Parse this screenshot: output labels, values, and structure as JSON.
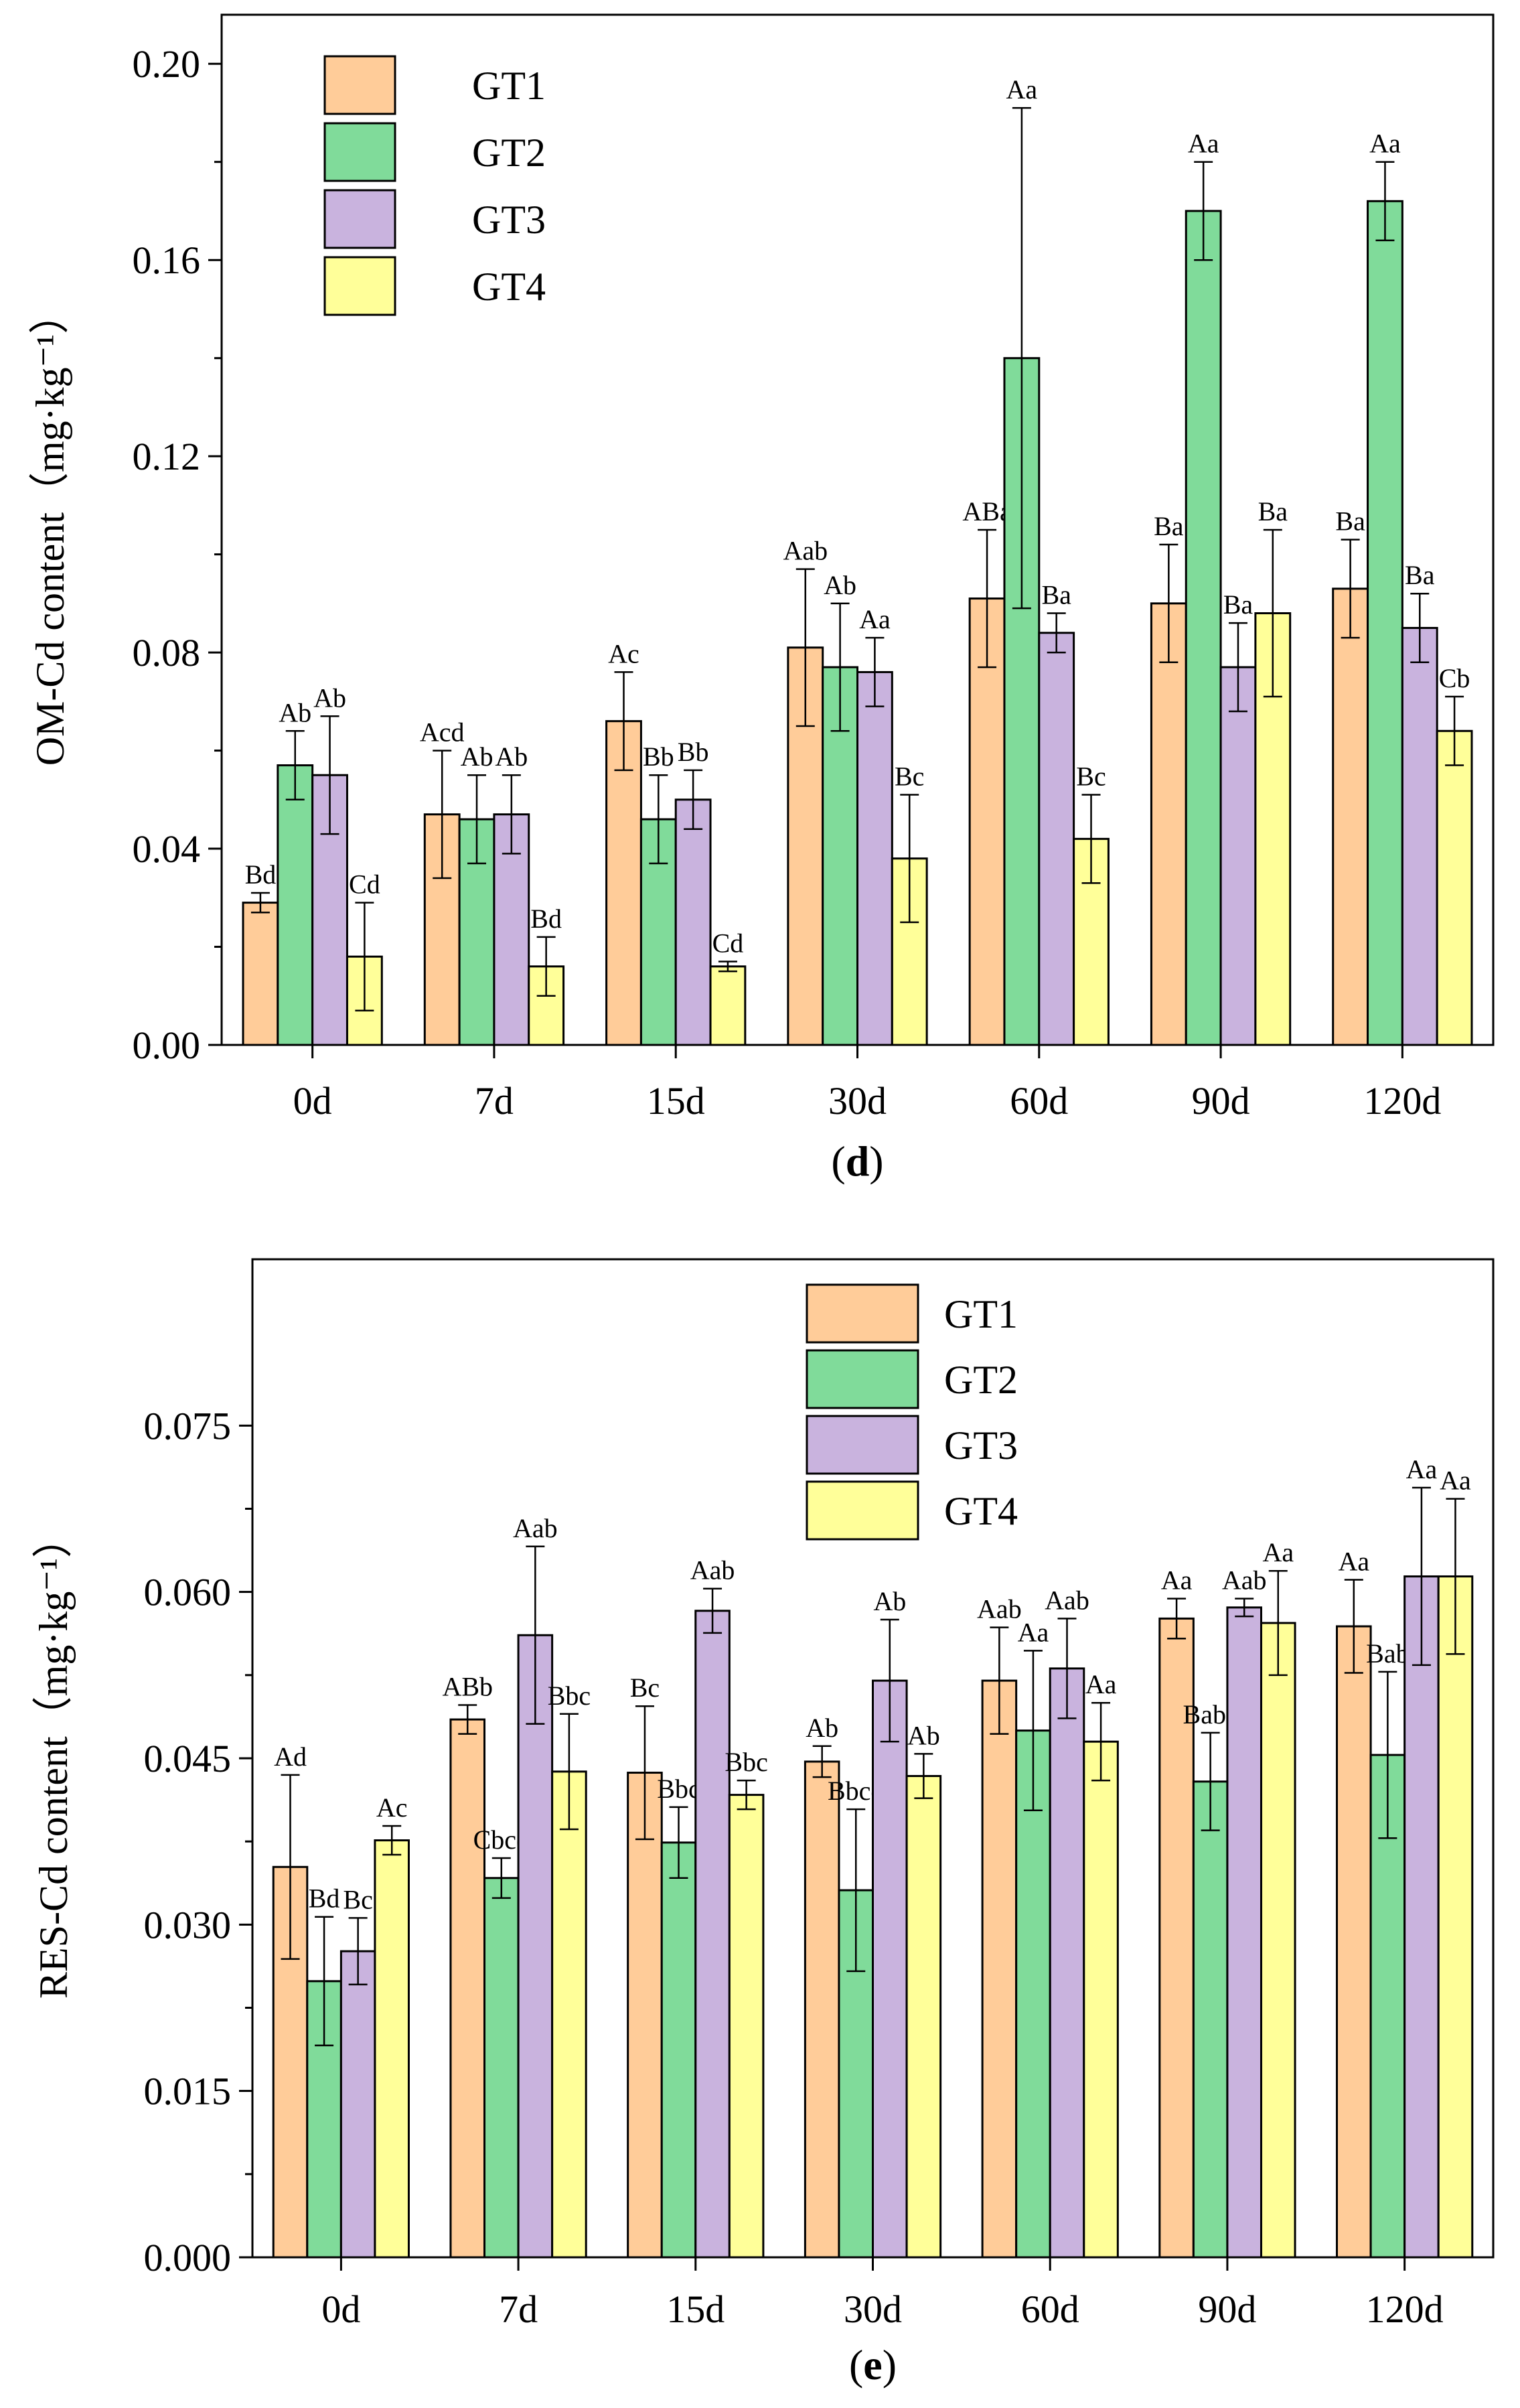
{
  "series_colors": [
    "#FFCC99",
    "#80DB9A",
    "#C9B3DE",
    "#FFFF99"
  ],
  "chart_data": [
    {
      "type": "bar",
      "panel": "(d)",
      "panel_letter": "d",
      "ylabel": "OM-Cd content（mg·kg⁻¹）",
      "ylim": [
        0,
        0.21
      ],
      "yticks": [
        0,
        0.04,
        0.08,
        0.12,
        0.16,
        0.2
      ],
      "ytick_labels": [
        "0.00",
        "0.04",
        "0.08",
        "0.12",
        "0.16",
        "0.20"
      ],
      "categories": [
        "0d",
        "7d",
        "15d",
        "30d",
        "60d",
        "90d",
        "120d"
      ],
      "legend_position": "top-left",
      "series": [
        {
          "name": "GT1",
          "values": [
            0.029,
            0.047,
            0.066,
            0.081,
            0.091,
            0.09,
            0.093
          ],
          "errors": [
            0.002,
            0.013,
            0.01,
            0.016,
            0.014,
            0.012,
            0.01
          ],
          "labels": [
            "Bd",
            "Acd",
            "Ac",
            "Aab",
            "ABa",
            "Ba",
            "Ba"
          ]
        },
        {
          "name": "GT2",
          "values": [
            0.057,
            0.046,
            0.046,
            0.077,
            0.14,
            0.17,
            0.172
          ],
          "errors": [
            0.007,
            0.009,
            0.009,
            0.013,
            0.051,
            0.01,
            0.008
          ],
          "labels": [
            "Ab",
            "Ab",
            "Bb",
            "Ab",
            "Aa",
            "Aa",
            "Aa"
          ]
        },
        {
          "name": "GT3",
          "values": [
            0.055,
            0.047,
            0.05,
            0.076,
            0.084,
            0.077,
            0.085
          ],
          "errors": [
            0.012,
            0.008,
            0.006,
            0.007,
            0.004,
            0.009,
            0.007
          ],
          "labels": [
            "Ab",
            "Ab",
            "Bb",
            "Aa",
            "Ba",
            "Ba",
            "Ba"
          ]
        },
        {
          "name": "GT4",
          "values": [
            0.018,
            0.016,
            0.016,
            0.038,
            0.042,
            0.088,
            0.064
          ],
          "errors": [
            0.011,
            0.006,
            0.001,
            0.013,
            0.009,
            0.017,
            0.007
          ],
          "labels": [
            "Cd",
            "Bd",
            "Cd",
            "Bc",
            "Bc",
            "Ba",
            "Cb"
          ]
        }
      ]
    },
    {
      "type": "bar",
      "panel": "(e)",
      "panel_letter": "e",
      "ylabel": "RES-Cd content（mg·kg⁻¹）",
      "ylim": [
        0,
        0.09
      ],
      "yticks": [
        0,
        0.015,
        0.03,
        0.045,
        0.06,
        0.075
      ],
      "ytick_labels": [
        "0.000",
        "0.015",
        "0.030",
        "0.045",
        "0.060",
        "0.075"
      ],
      "categories": [
        "0d",
        "7d",
        "15d",
        "30d",
        "60d",
        "90d",
        "120d"
      ],
      "legend_position": "top-center",
      "series": [
        {
          "name": "GT1",
          "values": [
            0.0352,
            0.0485,
            0.0437,
            0.0447,
            0.052,
            0.0576,
            0.0569
          ],
          "errors": [
            0.0083,
            0.0013,
            0.006,
            0.0014,
            0.0048,
            0.0018,
            0.0042
          ],
          "labels": [
            "Ad",
            "ABb",
            "Bc",
            "Ab",
            "Aab",
            "Aa",
            "Aa"
          ]
        },
        {
          "name": "GT2",
          "values": [
            0.0249,
            0.0342,
            0.0374,
            0.0331,
            0.0475,
            0.0429,
            0.0453
          ],
          "errors": [
            0.0058,
            0.0018,
            0.0032,
            0.0073,
            0.0072,
            0.0044,
            0.0075
          ],
          "labels": [
            "Bd",
            "Cbcd",
            "Bbc",
            "Bbcd",
            "Aa",
            "Babc",
            "Bab"
          ]
        },
        {
          "name": "GT3",
          "values": [
            0.0276,
            0.0561,
            0.0583,
            0.052,
            0.0531,
            0.0586,
            0.0614
          ],
          "errors": [
            0.003,
            0.008,
            0.002,
            0.0055,
            0.0045,
            0.0008,
            0.008
          ],
          "labels": [
            "Bc",
            "Aab",
            "Aab",
            "Ab",
            "Aab",
            "Aab",
            "Aa"
          ]
        },
        {
          "name": "GT4",
          "values": [
            0.0376,
            0.0438,
            0.0417,
            0.0434,
            0.0465,
            0.0572,
            0.0614
          ],
          "errors": [
            0.0013,
            0.0052,
            0.0013,
            0.002,
            0.0035,
            0.0047,
            0.007
          ],
          "labels": [
            "Ac",
            "Bbc",
            "Bbc",
            "Ab",
            "Aa",
            "Aa",
            "Aa"
          ]
        }
      ]
    }
  ]
}
